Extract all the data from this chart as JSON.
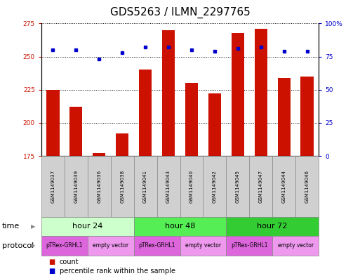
{
  "title": "GDS5263 / ILMN_2297765",
  "samples": [
    "GSM1149037",
    "GSM1149039",
    "GSM1149036",
    "GSM1149038",
    "GSM1149041",
    "GSM1149043",
    "GSM1149040",
    "GSM1149042",
    "GSM1149045",
    "GSM1149047",
    "GSM1149044",
    "GSM1149046"
  ],
  "counts": [
    225,
    212,
    177,
    192,
    240,
    270,
    230,
    222,
    268,
    271,
    234,
    235
  ],
  "percentiles": [
    80,
    80,
    73,
    78,
    82,
    82,
    80,
    79,
    81,
    82,
    79,
    79
  ],
  "ylim_left": [
    175,
    275
  ],
  "ylim_right": [
    0,
    100
  ],
  "yticks_left": [
    175,
    200,
    225,
    250,
    275
  ],
  "yticks_right": [
    0,
    25,
    50,
    75,
    100
  ],
  "bar_color": "#cc1100",
  "dot_color": "#0000cc",
  "time_groups": [
    {
      "label": "hour 24",
      "start": 0,
      "end": 4,
      "color": "#ccffcc"
    },
    {
      "label": "hour 48",
      "start": 4,
      "end": 8,
      "color": "#55ee55"
    },
    {
      "label": "hour 72",
      "start": 8,
      "end": 12,
      "color": "#33cc33"
    }
  ],
  "protocol_groups": [
    {
      "label": "pTRex-GRHL1",
      "start": 0,
      "end": 2,
      "color": "#dd66dd"
    },
    {
      "label": "empty vector",
      "start": 2,
      "end": 4,
      "color": "#ee99ee"
    },
    {
      "label": "pTRex-GRHL1",
      "start": 4,
      "end": 6,
      "color": "#dd66dd"
    },
    {
      "label": "empty vector",
      "start": 6,
      "end": 8,
      "color": "#ee99ee"
    },
    {
      "label": "pTRex-GRHL1",
      "start": 8,
      "end": 10,
      "color": "#dd66dd"
    },
    {
      "label": "empty vector",
      "start": 10,
      "end": 12,
      "color": "#ee99ee"
    }
  ],
  "time_label": "time",
  "protocol_label": "protocol",
  "legend_count_label": "count",
  "legend_pct_label": "percentile rank within the sample",
  "title_fontsize": 11,
  "tick_fontsize": 6.5,
  "label_fontsize": 8,
  "sample_fontsize": 5,
  "prot_fontsize": 5.5
}
